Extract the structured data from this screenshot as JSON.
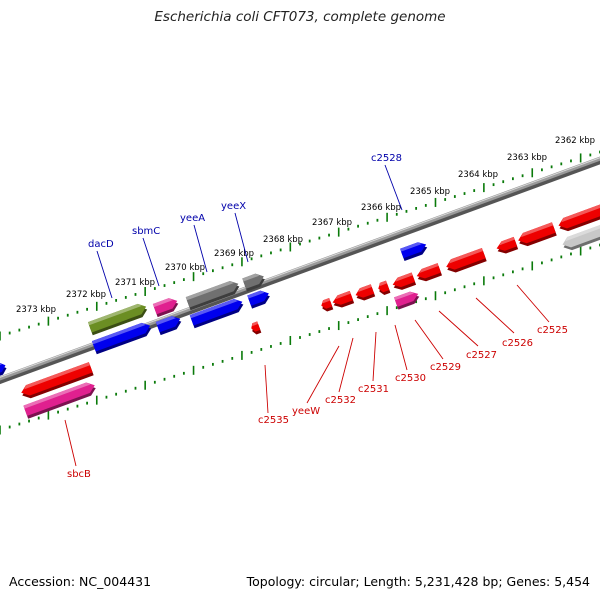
{
  "title": "Escherichia coli CFT073, complete genome",
  "footer": {
    "accession": "Accession: NC_004431",
    "topology": "Topology: circular; Length: 5,231,428 bp; Genes: 5,454"
  },
  "colors": {
    "forward_gene": "#0000ee",
    "reverse_gene": "#ee0000",
    "pink_gene": "#e0208f",
    "olive_gene": "#6b8e23",
    "gray_gene": "#707070",
    "light_gene": "#c8c8c8",
    "tick": "#0a7a0a",
    "backbone": "#808080",
    "forward_label": "#0000aa",
    "reverse_label": "#cc0000"
  },
  "scale_labels": [
    "2373 kbp",
    "2372 kbp",
    "2371 kbp",
    "2370 kbp",
    "2369 kbp",
    "2368 kbp",
    "2367 kbp",
    "2366 kbp",
    "2365 kbp",
    "2364 kbp",
    "2363 kbp",
    "2362 kbp"
  ],
  "forward_labels": [
    "dacD",
    "sbmC",
    "yeeA",
    "yeeX",
    "c2528"
  ],
  "reverse_labels": [
    "sbcB",
    "c2535",
    "yeeW",
    "c2532",
    "c2531",
    "c2530",
    "c2529",
    "c2527",
    "c2526",
    "c2525"
  ]
}
